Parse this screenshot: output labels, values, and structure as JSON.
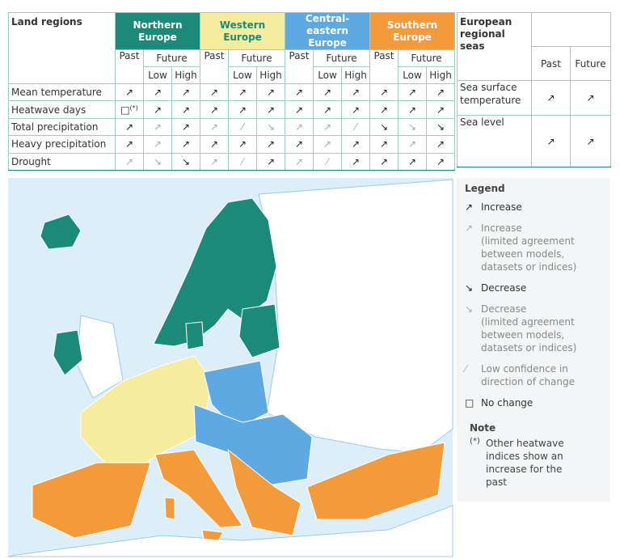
{
  "table": {
    "header": "Land regions",
    "past": "Past",
    "future": "Future",
    "low": "Low",
    "high": "High",
    "regions": [
      {
        "name": "Northern Europe",
        "color": "#1b8a78",
        "text_color": "#ffffff"
      },
      {
        "name": "Western Europe",
        "color": "#f6ec9e",
        "text_color": "#1b8a78"
      },
      {
        "name": "Central-eastern Europe",
        "color": "#5ea9e2",
        "text_color": "#ffffff"
      },
      {
        "name": "Southern Europe",
        "color": "#f39a3b",
        "text_color": "#ffffff"
      }
    ],
    "rows": [
      {
        "label": "Mean temperature",
        "cells": [
          {
            "s": "↗",
            "c": "#222"
          },
          {
            "s": "↗",
            "c": "#222"
          },
          {
            "s": "↗",
            "c": "#222"
          },
          {
            "s": "↗",
            "c": "#222"
          },
          {
            "s": "↗",
            "c": "#222"
          },
          {
            "s": "↗",
            "c": "#222"
          },
          {
            "s": "↗",
            "c": "#222"
          },
          {
            "s": "↗",
            "c": "#222"
          },
          {
            "s": "↗",
            "c": "#222"
          },
          {
            "s": "↗",
            "c": "#222"
          },
          {
            "s": "↗",
            "c": "#222"
          },
          {
            "s": "↗",
            "c": "#222"
          }
        ]
      },
      {
        "label": "Heatwave days",
        "cells": [
          {
            "s": "□",
            "c": "#222",
            "note": "(*)"
          },
          {
            "s": "↗",
            "c": "#222"
          },
          {
            "s": "↗",
            "c": "#222"
          },
          {
            "s": "↗",
            "c": "#222"
          },
          {
            "s": "↗",
            "c": "#222"
          },
          {
            "s": "↗",
            "c": "#222"
          },
          {
            "s": "↗",
            "c": "#222"
          },
          {
            "s": "↗",
            "c": "#222"
          },
          {
            "s": "↗",
            "c": "#222"
          },
          {
            "s": "↗",
            "c": "#222"
          },
          {
            "s": "↗",
            "c": "#222"
          },
          {
            "s": "↗",
            "c": "#222"
          }
        ]
      },
      {
        "label": "Total precipitation",
        "cells": [
          {
            "s": "↗",
            "c": "#222"
          },
          {
            "s": "↗",
            "c": "#aaa"
          },
          {
            "s": "↗",
            "c": "#222"
          },
          {
            "s": "↗",
            "c": "#aaa"
          },
          {
            "s": "⁄",
            "c": "#aaa"
          },
          {
            "s": "↘",
            "c": "#aaa"
          },
          {
            "s": "↗",
            "c": "#aaa"
          },
          {
            "s": "↗",
            "c": "#aaa"
          },
          {
            "s": "⁄",
            "c": "#aaa"
          },
          {
            "s": "↘",
            "c": "#222"
          },
          {
            "s": "↘",
            "c": "#aaa"
          },
          {
            "s": "↘",
            "c": "#222"
          }
        ]
      },
      {
        "label": "Heavy precipitation",
        "cells": [
          {
            "s": "↗",
            "c": "#222"
          },
          {
            "s": "↗",
            "c": "#aaa"
          },
          {
            "s": "↗",
            "c": "#222"
          },
          {
            "s": "↗",
            "c": "#222"
          },
          {
            "s": "↗",
            "c": "#222"
          },
          {
            "s": "↗",
            "c": "#222"
          },
          {
            "s": "↗",
            "c": "#222"
          },
          {
            "s": "↗",
            "c": "#aaa"
          },
          {
            "s": "↗",
            "c": "#222"
          },
          {
            "s": "↗",
            "c": "#222"
          },
          {
            "s": "↗",
            "c": "#aaa"
          },
          {
            "s": "↗",
            "c": "#222"
          }
        ]
      },
      {
        "label": "Drought",
        "cells": [
          {
            "s": "↗",
            "c": "#aaa"
          },
          {
            "s": "↘",
            "c": "#aaa"
          },
          {
            "s": "↘",
            "c": "#222"
          },
          {
            "s": "↗",
            "c": "#aaa"
          },
          {
            "s": "⁄",
            "c": "#aaa"
          },
          {
            "s": "↗",
            "c": "#222"
          },
          {
            "s": "↗",
            "c": "#aaa"
          },
          {
            "s": "⁄",
            "c": "#aaa"
          },
          {
            "s": "↗",
            "c": "#222"
          },
          {
            "s": "↗",
            "c": "#222"
          },
          {
            "s": "↗",
            "c": "#222"
          },
          {
            "s": "↗",
            "c": "#222"
          }
        ]
      }
    ]
  },
  "seas": {
    "header": "European regional seas",
    "past": "Past",
    "future": "Future",
    "rows": [
      {
        "label": "Sea surface temperature",
        "cells": [
          {
            "s": "↗",
            "c": "#222"
          },
          {
            "s": "↗",
            "c": "#222"
          }
        ]
      },
      {
        "label": "Sea level",
        "cells": [
          {
            "s": "↗",
            "c": "#222"
          },
          {
            "s": "↗",
            "c": "#222"
          }
        ]
      }
    ]
  },
  "legend": {
    "title": "Legend",
    "items": [
      {
        "s": "↗",
        "c": "#222",
        "label": "Increase"
      },
      {
        "s": "↗",
        "c": "#aaa",
        "label": "Increase",
        "detail": "(limited agreement between models, datasets or indices)"
      },
      {
        "s": "↘",
        "c": "#222",
        "label": "Decrease"
      },
      {
        "s": "↘",
        "c": "#aaa",
        "label": "Decrease",
        "detail": "(limited agreement between models, datasets or indices)"
      },
      {
        "s": "⁄",
        "c": "#aaa",
        "label": "Low confidence in direction of change"
      },
      {
        "s": "□",
        "c": "#222",
        "label": "No change"
      }
    ]
  },
  "note": {
    "title": "Note",
    "marker": "(*)",
    "text": "Other heatwave indices show an increase for the past"
  }
}
